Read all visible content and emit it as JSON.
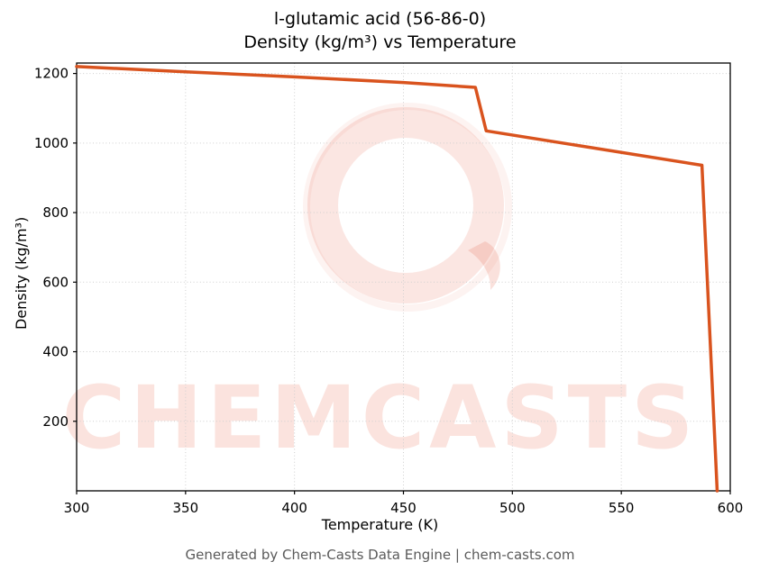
{
  "title_line1": "l-glutamic acid (56-86-0)",
  "title_line2": "Density (kg/m³) vs Temperature",
  "footer": "Generated by Chem-Casts Data Engine | chem-casts.com",
  "watermark_text": "CHEMCASTS",
  "colors": {
    "line": "#d9531e",
    "watermark": "rgba(229,90,60,0.16)",
    "grid": "#cfcfcf"
  },
  "chart_data": {
    "type": "line",
    "title": "l-glutamic acid (56-86-0) — Density (kg/m³) vs Temperature",
    "xlabel": "Temperature (K)",
    "ylabel": "Density (kg/m³)",
    "xlim": [
      300,
      600
    ],
    "ylim": [
      0,
      1230
    ],
    "x_ticks": [
      300,
      350,
      400,
      450,
      500,
      550,
      600
    ],
    "y_ticks": [
      200,
      400,
      600,
      800,
      1000,
      1200
    ],
    "grid": true,
    "legend": "none",
    "series": [
      {
        "name": "density",
        "color": "#d9531e",
        "points": [
          [
            300,
            1220
          ],
          [
            350,
            1205
          ],
          [
            400,
            1190
          ],
          [
            450,
            1174
          ],
          [
            483,
            1160
          ],
          [
            488,
            1035
          ],
          [
            530,
            993
          ],
          [
            587,
            936
          ],
          [
            594,
            0
          ]
        ]
      }
    ]
  }
}
